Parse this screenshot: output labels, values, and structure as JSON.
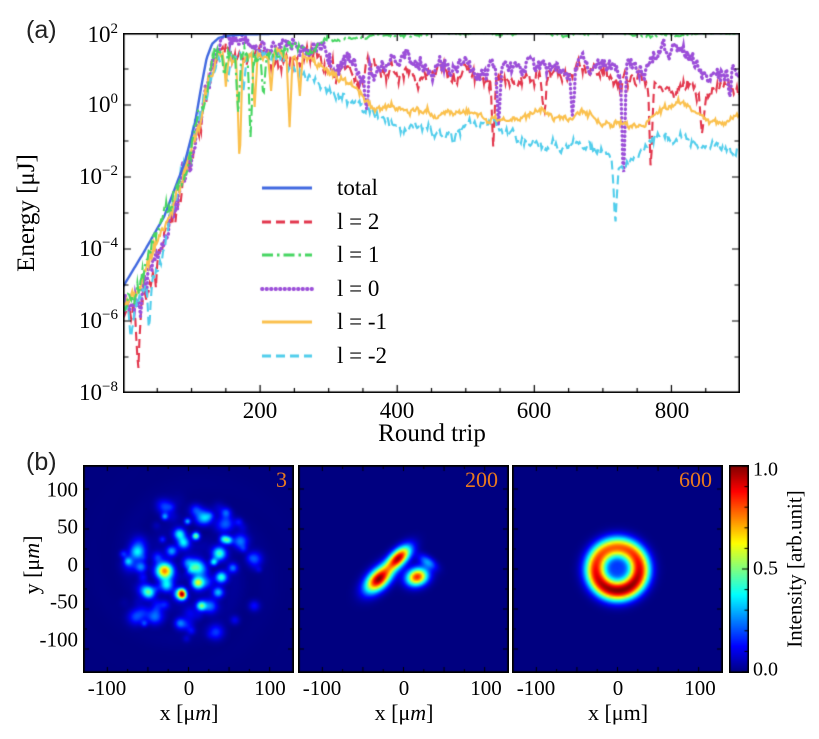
{
  "figure": {
    "panel_a_label": "(a)",
    "panel_b_label": "(b)",
    "background": "#ffffff",
    "axis_color": "#000000"
  },
  "chart_data": [
    {
      "id": "energy-vs-roundtrip",
      "type": "line",
      "xlabel": "Round trip",
      "ylabel": "Energy [μJ]",
      "x_range": [
        0,
        900
      ],
      "y_scale": "log10",
      "y_range_exp": [
        -8,
        2
      ],
      "grid": false,
      "legend_position": "inside-lower-middle",
      "xtick_values": [
        200,
        400,
        600,
        800
      ],
      "xtick_labels": [
        "200",
        "400",
        "600",
        "800"
      ],
      "ytick_exp_values": [
        2,
        0,
        -2,
        -4,
        -6,
        -8
      ],
      "ytick_labels": [
        {
          "base": "10",
          "exp": "2"
        },
        {
          "base": "10",
          "exp": "0"
        },
        {
          "base": "10",
          "exp": "−2"
        },
        {
          "base": "10",
          "exp": "−4"
        },
        {
          "base": "10",
          "exp": "−6"
        },
        {
          "base": "10",
          "exp": "−8"
        }
      ],
      "series": [
        {
          "label": "total",
          "color": "#4169E1",
          "style": "solid",
          "width": 2.4,
          "noise_dex": 0,
          "calm_after": null,
          "anchors": [
            [
              0,
              -5.05
            ],
            [
              30,
              -4.1
            ],
            [
              60,
              -3.1
            ],
            [
              90,
              -1.6
            ],
            [
              105,
              -0.5
            ],
            [
              115,
              0.6
            ],
            [
              122,
              1.3
            ],
            [
              130,
              1.7
            ],
            [
              140,
              1.87
            ],
            [
              155,
              1.93
            ],
            [
              180,
              1.96
            ],
            [
              250,
              1.99
            ],
            [
              400,
              2.0
            ],
            [
              900,
              2.0
            ]
          ],
          "spikes": []
        },
        {
          "label": "l = 2",
          "color": "#E3374D",
          "style": "dashed",
          "width": 2.1,
          "noise_dex": 0.28,
          "calm_after": null,
          "anchors": [
            [
              0,
              -5.9
            ],
            [
              25,
              -5.0
            ],
            [
              55,
              -3.8
            ],
            [
              85,
              -2.2
            ],
            [
              105,
              -1.0
            ],
            [
              118,
              -0.1
            ],
            [
              128,
              0.8
            ],
            [
              138,
              1.3
            ],
            [
              150,
              1.42
            ],
            [
              190,
              1.5
            ],
            [
              230,
              1.55
            ],
            [
              265,
              1.5
            ],
            [
              300,
              1.35
            ],
            [
              330,
              1.1
            ],
            [
              360,
              0.95
            ],
            [
              395,
              0.8
            ],
            [
              430,
              0.95
            ],
            [
              455,
              1.05
            ],
            [
              485,
              0.9
            ],
            [
              515,
              0.75
            ],
            [
              545,
              0.95
            ],
            [
              575,
              0.8
            ],
            [
              605,
              0.9
            ],
            [
              635,
              0.7
            ],
            [
              665,
              0.85
            ],
            [
              695,
              0.6
            ],
            [
              725,
              0.45
            ],
            [
              755,
              0.8
            ],
            [
              785,
              0.9
            ],
            [
              815,
              0.55
            ],
            [
              845,
              0.35
            ],
            [
              875,
              0.25
            ],
            [
              900,
              0.45
            ]
          ],
          "spikes": [
            [
              22,
              -2.2
            ],
            [
              310,
              -0.9
            ],
            [
              540,
              -1.8
            ],
            [
              614,
              -1.0
            ],
            [
              770,
              -2.6
            ],
            [
              845,
              -1.2
            ]
          ]
        },
        {
          "label": "l = 1",
          "color": "#47D662",
          "style": "dashdot",
          "width": 2.1,
          "noise_dex": 0.2,
          "calm_after": 300,
          "anchors": [
            [
              0,
              -5.6
            ],
            [
              25,
              -4.95
            ],
            [
              55,
              -3.75
            ],
            [
              85,
              -2.15
            ],
            [
              105,
              -0.95
            ],
            [
              118,
              -0.05
            ],
            [
              128,
              0.85
            ],
            [
              138,
              1.32
            ],
            [
              150,
              1.38
            ],
            [
              185,
              1.42
            ],
            [
              215,
              1.45
            ],
            [
              245,
              1.55
            ],
            [
              275,
              1.65
            ],
            [
              305,
              1.75
            ],
            [
              335,
              1.83
            ],
            [
              365,
              1.9
            ],
            [
              400,
              1.94
            ],
            [
              450,
              1.965
            ],
            [
              520,
              1.98
            ],
            [
              900,
              1.99
            ]
          ],
          "spikes": [
            [
              148,
              -0.9
            ],
            [
              168,
              -1.5
            ],
            [
              186,
              -2.3
            ],
            [
              205,
              -1.1
            ]
          ]
        },
        {
          "label": "l = 0",
          "color": "#9C4FD9",
          "style": "dotted",
          "width": 2.1,
          "noise_dex": 0.3,
          "calm_after": null,
          "anchors": [
            [
              0,
              -5.8
            ],
            [
              25,
              -5.05
            ],
            [
              55,
              -3.85
            ],
            [
              85,
              -2.25
            ],
            [
              105,
              -1.05
            ],
            [
              118,
              -0.12
            ],
            [
              128,
              0.78
            ],
            [
              138,
              1.3
            ],
            [
              150,
              1.5
            ],
            [
              195,
              1.55
            ],
            [
              240,
              1.6
            ],
            [
              280,
              1.55
            ],
            [
              315,
              1.35
            ],
            [
              345,
              1.2
            ],
            [
              380,
              1.15
            ],
            [
              410,
              1.2
            ],
            [
              440,
              1.25
            ],
            [
              470,
              1.1
            ],
            [
              500,
              1.05
            ],
            [
              530,
              1.2
            ],
            [
              560,
              1.1
            ],
            [
              590,
              1.25
            ],
            [
              620,
              1.1
            ],
            [
              650,
              0.95
            ],
            [
              680,
              1.1
            ],
            [
              710,
              1.2
            ],
            [
              740,
              1.15
            ],
            [
              770,
              1.25
            ],
            [
              800,
              1.3
            ],
            [
              830,
              1.1
            ],
            [
              860,
              1.0
            ],
            [
              900,
              0.85
            ]
          ],
          "spikes": [
            [
              355,
              -1.2
            ],
            [
              548,
              -1.8
            ],
            [
              656,
              -1.3
            ],
            [
              730,
              -3.2
            ],
            [
              885,
              -0.9
            ]
          ]
        },
        {
          "label": "l = -1",
          "color": "#FBC14E",
          "style": "solid",
          "width": 2.1,
          "noise_dex": 0.13,
          "calm_after": null,
          "anchors": [
            [
              0,
              -5.65
            ],
            [
              25,
              -4.98
            ],
            [
              55,
              -3.78
            ],
            [
              85,
              -2.18
            ],
            [
              105,
              -0.98
            ],
            [
              118,
              -0.08
            ],
            [
              128,
              0.82
            ],
            [
              138,
              1.33
            ],
            [
              150,
              1.4
            ],
            [
              195,
              1.42
            ],
            [
              235,
              1.45
            ],
            [
              268,
              1.35
            ],
            [
              300,
              1.0
            ],
            [
              330,
              0.6
            ],
            [
              360,
              0.25
            ],
            [
              390,
              -0.05
            ],
            [
              425,
              -0.15
            ],
            [
              455,
              -0.2
            ],
            [
              485,
              -0.25
            ],
            [
              515,
              -0.3
            ],
            [
              545,
              -0.4
            ],
            [
              575,
              -0.45
            ],
            [
              605,
              -0.2
            ],
            [
              635,
              -0.25
            ],
            [
              665,
              -0.3
            ],
            [
              695,
              -0.4
            ],
            [
              720,
              -0.5
            ],
            [
              745,
              -0.55
            ],
            [
              770,
              -0.3
            ],
            [
              800,
              -0.05
            ],
            [
              820,
              0.0
            ],
            [
              850,
              -0.35
            ],
            [
              875,
              -0.5
            ],
            [
              900,
              -0.25
            ]
          ],
          "spikes": [
            [
              150,
              -0.9
            ],
            [
              170,
              -2.9
            ],
            [
              192,
              -1.5
            ],
            [
              216,
              -1.1
            ],
            [
              243,
              -2.0
            ],
            [
              258,
              -1.0
            ]
          ]
        },
        {
          "label": "l = -2",
          "color": "#52CEEC",
          "style": "dashed",
          "width": 2.1,
          "noise_dex": 0.18,
          "calm_after": null,
          "anchors": [
            [
              0,
              -5.75
            ],
            [
              25,
              -5.1
            ],
            [
              55,
              -3.9
            ],
            [
              85,
              -2.3
            ],
            [
              105,
              -1.1
            ],
            [
              118,
              -0.15
            ],
            [
              128,
              0.75
            ],
            [
              138,
              1.25
            ],
            [
              150,
              1.28
            ],
            [
              195,
              1.3
            ],
            [
              228,
              1.25
            ],
            [
              260,
              0.9
            ],
            [
              290,
              0.5
            ],
            [
              320,
              0.2
            ],
            [
              350,
              -0.1
            ],
            [
              380,
              -0.4
            ],
            [
              410,
              -0.6
            ],
            [
              440,
              -0.5
            ],
            [
              470,
              -0.75
            ],
            [
              500,
              -0.6
            ],
            [
              530,
              -0.7
            ],
            [
              560,
              -0.85
            ],
            [
              590,
              -1.0
            ],
            [
              620,
              -1.1
            ],
            [
              650,
              -1.25
            ],
            [
              680,
              -1.2
            ],
            [
              705,
              -1.5
            ],
            [
              720,
              -1.9
            ],
            [
              740,
              -1.4
            ],
            [
              765,
              -1.05
            ],
            [
              790,
              -0.9
            ],
            [
              815,
              -1.0
            ],
            [
              840,
              -1.15
            ],
            [
              865,
              -1.05
            ],
            [
              900,
              -1.1
            ]
          ],
          "spikes": [
            [
              12,
              -1.0
            ],
            [
              38,
              -1.2
            ],
            [
              152,
              -0.8
            ],
            [
              176,
              -1.2
            ],
            [
              482,
              -0.5
            ],
            [
              718,
              -1.5
            ]
          ]
        }
      ]
    },
    {
      "id": "mode-profiles",
      "type": "heatmap",
      "colormap": "jet",
      "x_range_um": [
        -130,
        130
      ],
      "y_range_um": [
        -130,
        130
      ],
      "xtick_values": [
        -100,
        0,
        100
      ],
      "xtick_labels": [
        "-100",
        "0",
        "100"
      ],
      "ytick_values": [
        100,
        50,
        0,
        -50,
        -100
      ],
      "ytick_labels": [
        "100",
        "50",
        "0",
        "-50",
        "-100"
      ],
      "ylabel_parts": {
        "pre": "y [μ",
        "m": "m",
        "post": "]"
      },
      "frame_label_color": "#E8791F",
      "frames": [
        {
          "label": "3",
          "xlabel_parts": {
            "pre": "x [μ",
            "m": "m",
            "post": "]"
          },
          "m_italic": true,
          "pattern": {
            "kind": "speckle",
            "seed": 20231,
            "n_spots": 85,
            "r_max_um": 95,
            "envelope_sigma_um": 72,
            "halo_amp": 0.05
          }
        },
        {
          "label": "200",
          "xlabel_parts": {
            "pre": "x [μ",
            "m": "m",
            "post": "]"
          },
          "m_italic": true,
          "pattern": {
            "kind": "lobes",
            "lobes": [
              {
                "x": -6,
                "y": 14,
                "sx": 13,
                "sy": 6.5,
                "rot_deg": 45,
                "amp": 1.0
              },
              {
                "x": -31,
                "y": -13,
                "sx": 14,
                "sy": 8,
                "rot_deg": 45,
                "amp": 1.05
              },
              {
                "x": 17,
                "y": -10,
                "sx": 9.5,
                "sy": 7.5,
                "rot_deg": 20,
                "amp": 0.9
              },
              {
                "x": 30,
                "y": 9,
                "sx": 9,
                "sy": 4.5,
                "rot_deg": -35,
                "amp": 0.28
              }
            ]
          }
        },
        {
          "label": "600",
          "xlabel_parts": {
            "pre": "x [μ",
            "m": "m",
            "post": "]"
          },
          "m_italic": false,
          "pattern": {
            "kind": "ring",
            "radius_um": 27,
            "width_sigma_um": 9.5,
            "center_bump_amp": 0.18,
            "center_bump_sigma_um": 7,
            "azimuthal_mod": 0.12,
            "azimuthal_phase_deg": 100
          }
        }
      ],
      "colorbar": {
        "tick_labels": [
          "1.0",
          "0.5",
          "0.0"
        ],
        "tick_values": [
          1.0,
          0.5,
          0.0
        ],
        "label": "Intensity [arb.unit]"
      }
    }
  ]
}
